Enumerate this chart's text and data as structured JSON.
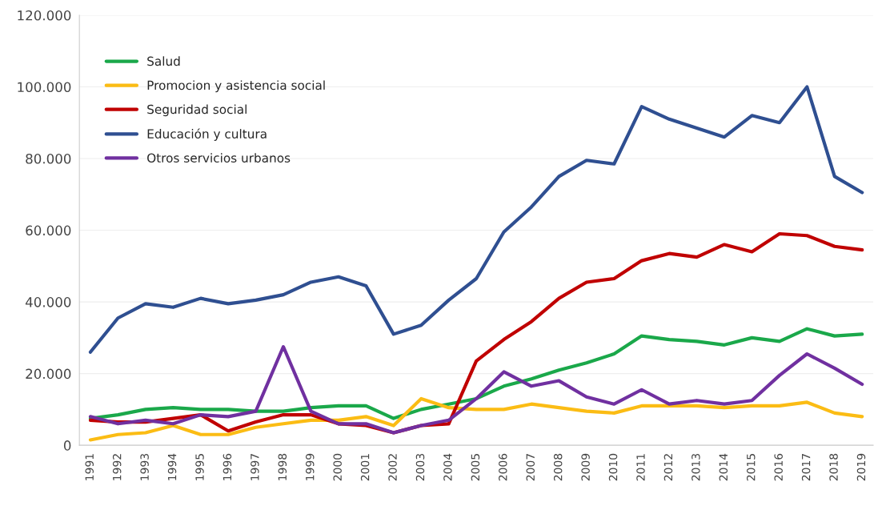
{
  "chart_data": {
    "type": "line",
    "categories": [
      "1991",
      "1992",
      "1993",
      "1994",
      "1995",
      "1996",
      "1997",
      "1998",
      "1999",
      "2000",
      "2001",
      "2002",
      "2003",
      "2004",
      "2005",
      "2006",
      "2007",
      "2008",
      "2009",
      "2010",
      "2011",
      "2012",
      "2013",
      "2014",
      "2015",
      "2016",
      "2017",
      "2018",
      "2019"
    ],
    "series": [
      {
        "name": "Salud",
        "color": "#1aa84a",
        "values": [
          7500,
          8500,
          10000,
          10500,
          10000,
          10000,
          9500,
          9500,
          10500,
          11000,
          11000,
          7500,
          10000,
          11500,
          13000,
          16500,
          18500,
          21000,
          23000,
          25500,
          30500,
          29500,
          29000,
          28000,
          30000,
          29000,
          32500,
          30500,
          31000
        ]
      },
      {
        "name": "Promocion y asistencia social",
        "color": "#fbbc14",
        "values": [
          1500,
          3000,
          3500,
          5500,
          3000,
          3000,
          5000,
          6000,
          7000,
          7000,
          8000,
          5500,
          13000,
          10500,
          10000,
          10000,
          11500,
          10500,
          9500,
          9000,
          11000,
          11000,
          11000,
          10500,
          11000,
          11000,
          12000,
          9000,
          8000
        ]
      },
      {
        "name": "Seguridad social",
        "color": "#c00000",
        "values": [
          7000,
          6500,
          6500,
          7500,
          8500,
          4000,
          6500,
          8500,
          8500,
          6000,
          5500,
          3500,
          5500,
          6000,
          23500,
          29500,
          34500,
          41000,
          45500,
          46500,
          51500,
          53500,
          52500,
          56000,
          54000,
          59000,
          58500,
          55500,
          54500
        ]
      },
      {
        "name": "Educación y cultura",
        "color": "#2f4f91",
        "values": [
          26000,
          35500,
          39500,
          38500,
          41000,
          39500,
          40500,
          42000,
          45500,
          47000,
          44500,
          31000,
          33500,
          40500,
          46500,
          59500,
          66500,
          75000,
          79500,
          78500,
          94500,
          91000,
          88500,
          86000,
          92000,
          90000,
          100000,
          75000,
          70500
        ]
      },
      {
        "name": "Otros servicios urbanos",
        "color": "#7030a0",
        "values": [
          8000,
          6000,
          7000,
          6000,
          8500,
          8000,
          9500,
          27500,
          9500,
          6000,
          6000,
          3500,
          5500,
          7000,
          13000,
          20500,
          16500,
          18000,
          13500,
          11500,
          15500,
          11500,
          12500,
          11500,
          12500,
          19500,
          25500,
          21500,
          17000
        ]
      }
    ],
    "ylim": [
      0,
      120000
    ],
    "yticks": [
      {
        "value": 0,
        "label": "0"
      },
      {
        "value": 20000,
        "label": "20.000"
      },
      {
        "value": 40000,
        "label": "40.000"
      },
      {
        "value": 60000,
        "label": "60.000"
      },
      {
        "value": 80000,
        "label": "80.000"
      },
      {
        "value": 100000,
        "label": "100.000"
      },
      {
        "value": 120000,
        "label": "120.000"
      }
    ],
    "grid": "y",
    "legend": "top left",
    "marker": "none",
    "line_style": "solid"
  }
}
